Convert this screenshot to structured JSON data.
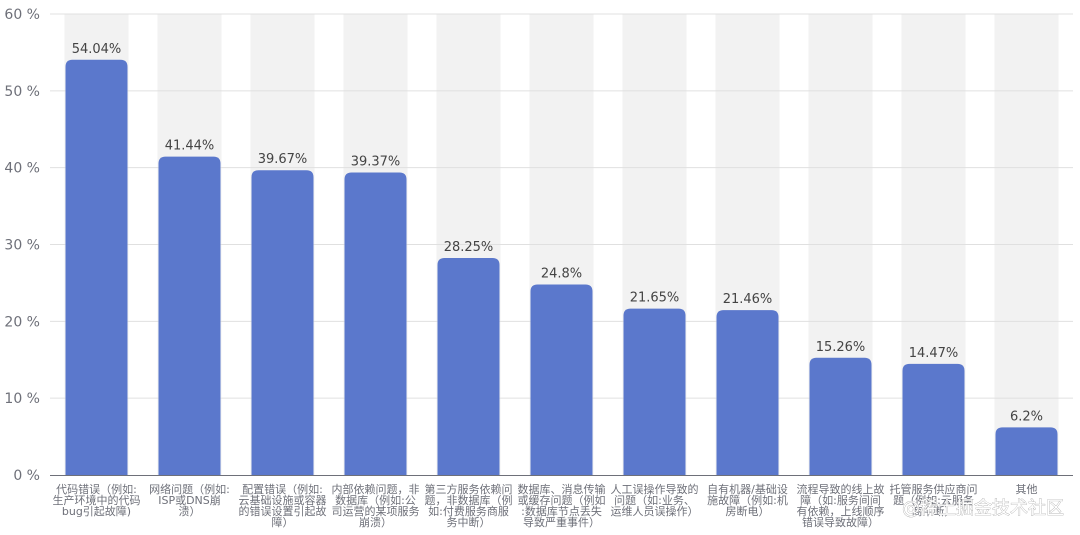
{
  "chart_data": {
    "type": "bar",
    "categories": [
      "代码错误（例如:生产环境中的代码bug引起故障）",
      "网络问题（例如:ISP或DNS崩溃）",
      "配置错误（例如:云基础设施或容器的错误设置引起故障）",
      "内部依赖问题，非数据库（例如:公司运营的某项服务崩溃）",
      "第三方服务依赖问题，非数据库（例如:付费服务商服务中断）",
      "数据库、消息传输或缓存问题（例如:数据库节点丢失导致严重事件）",
      "人工误操作导致的问题（如:业务、运维人员误操作）",
      "自有机器/基础设施故障（例如:机房断电）",
      "流程导致的线上故障（如:服务间间有依赖，上线顺序错误导致故障）",
      "托管服务供应商问题（例如:云服务商中断）",
      "其他"
    ],
    "category_lines": [
      [
        "代码错误（例如:",
        "生产环境中的代码",
        "bug引起故障)"
      ],
      [
        "网络问题（例如:",
        "ISP或DNS崩",
        "溃）"
      ],
      [
        "配置错误（例如:",
        "云基础设施或容器",
        "的错误设置引起故",
        "障）"
      ],
      [
        "内部依赖问题，非",
        "数据库（例如:公",
        "司运营的某项服务",
        "崩溃）"
      ],
      [
        "第三方服务依赖问",
        "题，非数据库（例",
        "如:付费服务商服",
        "务中断）"
      ],
      [
        "数据库、消息传输",
        "或缓存问题（例如",
        ":数据库节点丢失",
        "导致严重事件）"
      ],
      [
        "人工误操作导致的",
        "问题（如:业务、",
        "运维人员误操作）"
      ],
      [
        "自有机器/基础设",
        "施故障（例如:机",
        "房断电）"
      ],
      [
        "流程导致的线上故",
        "障（如:服务间间",
        "有依赖，上线顺序",
        "错误导致故障）"
      ],
      [
        "托管服务供应商问",
        "题（例如:云服务",
        "商中断）"
      ],
      [
        "其他"
      ]
    ],
    "values": [
      54.04,
      41.44,
      39.67,
      39.37,
      28.25,
      24.8,
      21.65,
      21.46,
      15.26,
      14.47,
      6.2
    ],
    "data_labels": [
      "54.04%",
      "41.44%",
      "39.67%",
      "39.37%",
      "28.25%",
      "24.8%",
      "21.65%",
      "21.46%",
      "15.26%",
      "14.47%",
      "6.2%"
    ],
    "yticks": [
      "0 %",
      "10 %",
      "20 %",
      "30 %",
      "40 %",
      "50 %",
      "60 %"
    ],
    "ylim": [
      0,
      60
    ],
    "grid": true,
    "title": "",
    "xlabel": "",
    "ylabel": "",
    "colors": {
      "bar": "#5b78cc",
      "band": "#f2f2f2",
      "grid": "#e0e0e0",
      "axis": "#6e7079"
    }
  },
  "watermark": "@稀土掘金技术社区"
}
